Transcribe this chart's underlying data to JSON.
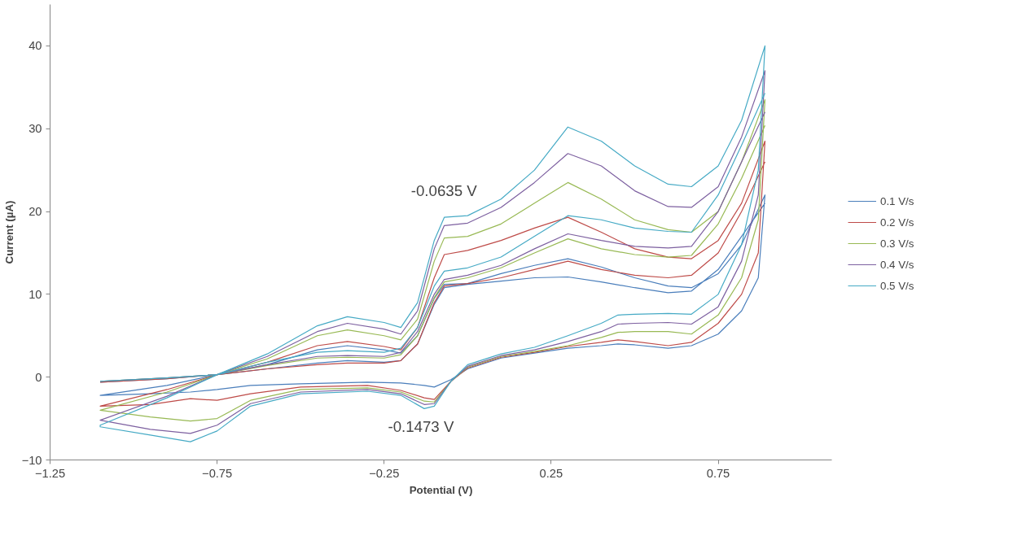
{
  "chart_data": {
    "type": "line",
    "xlabel": "Potential (V)",
    "ylabel": "Current (µA)",
    "xlim": [
      -1.25,
      1.09
    ],
    "xticks": [
      -1.25,
      -0.75,
      -0.25,
      0.25,
      0.75
    ],
    "ylim": [
      -10,
      45
    ],
    "yticks": [
      -10,
      0,
      10,
      20,
      30,
      40
    ],
    "grid": false,
    "legend": "right",
    "marker": "none",
    "line_style": "solid",
    "annotations": [
      "-0.0635 V",
      "-0.1473 V"
    ],
    "series": [
      {
        "name": "0.1 V/s",
        "color": "#4a7ebb",
        "x": [
          -1.1,
          -0.9,
          -0.75,
          -0.6,
          -0.45,
          -0.36,
          -0.25,
          -0.2,
          -0.15,
          -0.1,
          -0.07,
          0.0,
          0.1,
          0.2,
          0.3,
          0.4,
          0.5,
          0.6,
          0.67,
          0.75,
          0.82,
          0.89,
          0.87,
          0.82,
          0.75,
          0.67,
          0.6,
          0.5,
          0.45,
          0.4,
          0.3,
          0.2,
          0.1,
          0.0,
          -0.05,
          -0.1,
          -0.13,
          -0.2,
          -0.3,
          -0.5,
          -0.65,
          -0.75,
          -0.83,
          -0.95,
          -1.1,
          -1.1,
          -0.9,
          -0.75,
          -0.6,
          -0.45,
          -0.36,
          -0.25,
          -0.2,
          -0.15,
          -0.1,
          -0.07,
          0.0,
          0.1,
          0.2,
          0.3,
          0.4,
          0.5,
          0.6,
          0.67,
          0.75,
          0.82,
          0.89
        ],
        "values": [
          -0.6,
          -0.2,
          0.3,
          1.5,
          3.3,
          3.8,
          3.3,
          2.9,
          5,
          9.5,
          11.2,
          11.3,
          12.5,
          13.5,
          14.3,
          13.3,
          12,
          11,
          10.8,
          12.5,
          16,
          22,
          12,
          8,
          5.2,
          3.8,
          3.5,
          3.9,
          4.0,
          3.8,
          3.5,
          2.9,
          2.3,
          1.0,
          -0.3,
          -1.2,
          -1.0,
          -0.7,
          -0.6,
          -0.8,
          -1.0,
          -1.5,
          -1.8,
          -2,
          -2.2,
          -2.2,
          -1,
          0.3,
          1.0,
          1.7,
          2.0,
          1.8,
          2,
          4,
          8.8,
          10.8,
          11.2,
          11.6,
          12,
          12.1,
          11.5,
          10.8,
          10.2,
          10.4,
          13,
          17,
          21
        ]
      },
      {
        "name": "0.2 V/s",
        "color": "#be4b48",
        "x": [
          -1.1,
          -0.9,
          -0.75,
          -0.6,
          -0.45,
          -0.36,
          -0.25,
          -0.2,
          -0.15,
          -0.1,
          -0.07,
          0.0,
          0.1,
          0.2,
          0.3,
          0.4,
          0.5,
          0.6,
          0.67,
          0.75,
          0.82,
          0.89,
          0.87,
          0.82,
          0.75,
          0.67,
          0.6,
          0.5,
          0.45,
          0.4,
          0.3,
          0.2,
          0.1,
          0.0,
          -0.05,
          -0.1,
          -0.13,
          -0.2,
          -0.3,
          -0.5,
          -0.65,
          -0.75,
          -0.83,
          -0.95,
          -1.1,
          -1.1,
          -0.9,
          -0.75,
          -0.6,
          -0.45,
          -0.36,
          -0.25,
          -0.2,
          -0.15,
          -0.1,
          -0.07,
          0.0,
          0.1,
          0.2,
          0.3,
          0.4,
          0.5,
          0.6,
          0.67,
          0.75,
          0.82,
          0.89
        ],
        "values": [
          -0.6,
          -0.2,
          0.3,
          1.8,
          3.8,
          4.3,
          3.7,
          3.3,
          6,
          12,
          14.8,
          15.3,
          16.5,
          18,
          19.3,
          17.5,
          15.5,
          14.5,
          14.3,
          16.5,
          21,
          28.5,
          15,
          10,
          6.5,
          4.2,
          3.8,
          4.3,
          4.5,
          4.2,
          3.7,
          3.0,
          2.4,
          1.1,
          -0.5,
          -2.7,
          -2.5,
          -1.6,
          -1.0,
          -1.2,
          -2.0,
          -2.8,
          -2.6,
          -3.3,
          -3.5,
          -3.5,
          -1.5,
          0.3,
          1.0,
          1.5,
          1.7,
          1.7,
          2.0,
          4,
          9,
          11,
          11.3,
          12,
          13,
          14,
          13,
          12.3,
          12,
          12.3,
          15,
          20,
          26
        ]
      },
      {
        "name": "0.3 V/s",
        "color": "#98b954",
        "x": [
          -1.1,
          -0.9,
          -0.75,
          -0.6,
          -0.45,
          -0.36,
          -0.25,
          -0.2,
          -0.15,
          -0.1,
          -0.07,
          0.0,
          0.1,
          0.2,
          0.3,
          0.4,
          0.5,
          0.6,
          0.67,
          0.75,
          0.82,
          0.89,
          0.87,
          0.82,
          0.75,
          0.67,
          0.6,
          0.5,
          0.45,
          0.4,
          0.3,
          0.2,
          0.1,
          0.0,
          -0.05,
          -0.1,
          -0.13,
          -0.2,
          -0.3,
          -0.5,
          -0.65,
          -0.75,
          -0.83,
          -0.95,
          -1.1,
          -1.1,
          -0.9,
          -0.75,
          -0.6,
          -0.45,
          -0.36,
          -0.25,
          -0.2,
          -0.15,
          -0.1,
          -0.07,
          0.0,
          0.1,
          0.2,
          0.3,
          0.4,
          0.5,
          0.6,
          0.67,
          0.75,
          0.82,
          0.89
        ],
        "values": [
          -0.5,
          -0.1,
          0.3,
          2.2,
          5,
          5.7,
          5.0,
          4.5,
          7,
          14,
          16.8,
          17,
          18.5,
          21,
          23.5,
          21.5,
          19,
          17.8,
          17.5,
          20,
          26,
          33.5,
          19,
          12,
          7.5,
          5.2,
          5.5,
          5.5,
          5.4,
          4.8,
          3.8,
          3.1,
          2.5,
          1.2,
          -0.5,
          -3,
          -2.9,
          -1.8,
          -1.3,
          -1.5,
          -2.8,
          -5,
          -5.3,
          -4.8,
          -4,
          -4,
          -1.8,
          0.3,
          1.4,
          2.3,
          2.4,
          2.3,
          2.7,
          5,
          9.6,
          11.5,
          12,
          13.2,
          15,
          16.7,
          15.5,
          14.8,
          14.5,
          14.7,
          18.5,
          24,
          30.4
        ]
      },
      {
        "name": "0.4 V/s",
        "color": "#7d60a0",
        "x": [
          -1.1,
          -0.9,
          -0.75,
          -0.6,
          -0.45,
          -0.36,
          -0.25,
          -0.2,
          -0.15,
          -0.1,
          -0.07,
          0.0,
          0.1,
          0.2,
          0.3,
          0.4,
          0.5,
          0.6,
          0.67,
          0.75,
          0.82,
          0.89,
          0.87,
          0.82,
          0.75,
          0.67,
          0.6,
          0.5,
          0.45,
          0.4,
          0.3,
          0.2,
          0.1,
          0.0,
          -0.05,
          -0.1,
          -0.13,
          -0.2,
          -0.3,
          -0.5,
          -0.65,
          -0.75,
          -0.83,
          -0.95,
          -1.1,
          -1.1,
          -0.9,
          -0.75,
          -0.6,
          -0.45,
          -0.36,
          -0.25,
          -0.2,
          -0.15,
          -0.1,
          -0.07,
          0.0,
          0.1,
          0.2,
          0.3,
          0.4,
          0.5,
          0.6,
          0.67,
          0.75,
          0.82,
          0.89
        ],
        "values": [
          -0.5,
          -0.1,
          0.3,
          2.5,
          5.5,
          6.5,
          5.8,
          5.2,
          8,
          15.5,
          18.3,
          18.6,
          20.5,
          23.5,
          27,
          25.5,
          22.5,
          20.6,
          20.5,
          23,
          29,
          37,
          22,
          14,
          8.5,
          6.4,
          6.6,
          6.5,
          6.4,
          5.5,
          4.3,
          3.3,
          2.6,
          1.3,
          -0.5,
          -3.2,
          -3.3,
          -2.0,
          -1.5,
          -1.8,
          -3.2,
          -5.8,
          -6.8,
          -6.3,
          -5.2,
          -5.2,
          -2.3,
          0.3,
          1.5,
          2.5,
          2.6,
          2.5,
          3,
          5.5,
          10,
          11.8,
          12.3,
          13.5,
          15.5,
          17.3,
          16.5,
          15.8,
          15.6,
          15.8,
          20,
          26,
          32
        ]
      },
      {
        "name": "0.5 V/s",
        "color": "#46aac5",
        "x": [
          -1.1,
          -0.9,
          -0.75,
          -0.6,
          -0.45,
          -0.36,
          -0.25,
          -0.2,
          -0.15,
          -0.1,
          -0.07,
          0.0,
          0.1,
          0.2,
          0.3,
          0.4,
          0.5,
          0.6,
          0.67,
          0.75,
          0.82,
          0.89,
          0.87,
          0.82,
          0.75,
          0.67,
          0.6,
          0.5,
          0.45,
          0.4,
          0.3,
          0.2,
          0.1,
          0.0,
          -0.05,
          -0.1,
          -0.13,
          -0.2,
          -0.3,
          -0.5,
          -0.65,
          -0.75,
          -0.83,
          -0.95,
          -1.1,
          -1.1,
          -0.9,
          -0.75,
          -0.6,
          -0.45,
          -0.36,
          -0.25,
          -0.2,
          -0.15,
          -0.1,
          -0.07,
          0.0,
          0.1,
          0.2,
          0.3,
          0.4,
          0.5,
          0.6,
          0.67,
          0.75,
          0.82,
          0.89
        ],
        "values": [
          -0.5,
          -0.1,
          0.3,
          2.8,
          6.2,
          7.3,
          6.6,
          6.0,
          9,
          16.5,
          19.3,
          19.5,
          21.5,
          25,
          30.2,
          28.5,
          25.5,
          23.3,
          23,
          25.5,
          31,
          40,
          25,
          16,
          10,
          7.6,
          7.7,
          7.6,
          7.5,
          6.5,
          5,
          3.6,
          2.8,
          1.5,
          -0.5,
          -3.5,
          -3.8,
          -2.2,
          -1.7,
          -2.0,
          -3.5,
          -6.5,
          -7.8,
          -7,
          -6,
          -5.8,
          -2.5,
          0.3,
          1.8,
          3.0,
          3.2,
          3.0,
          3.5,
          6,
          11,
          12.8,
          13.2,
          14.5,
          17,
          19.5,
          19,
          18,
          17.6,
          17.5,
          22,
          28,
          34.3
        ]
      }
    ]
  }
}
